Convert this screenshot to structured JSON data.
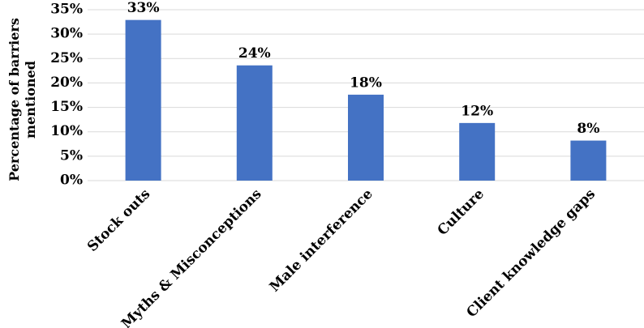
{
  "chart_data": {
    "type": "bar",
    "y_label": "Percentage of barriers mentioned",
    "categories": [
      "Stock outs",
      "Myths & Misconceptions",
      "Male interference",
      "Culture",
      "Client knowledge gaps"
    ],
    "values": [
      32.9,
      23.6,
      17.6,
      11.8,
      8.2
    ],
    "value_labels": [
      "33%",
      "24%",
      "18%",
      "12%",
      "8%"
    ],
    "color": "#4472c4",
    "ylim": [
      0,
      35
    ],
    "yticks": [
      {
        "value": 0,
        "label": "0%"
      },
      {
        "value": 5,
        "label": "5%"
      },
      {
        "value": 10,
        "label": "10%"
      },
      {
        "value": 15,
        "label": "15%"
      },
      {
        "value": 20,
        "label": "20%"
      },
      {
        "value": 25,
        "label": "25%"
      },
      {
        "value": 30,
        "label": "30%"
      },
      {
        "value": 35,
        "label": "35%"
      }
    ],
    "grid": true
  }
}
